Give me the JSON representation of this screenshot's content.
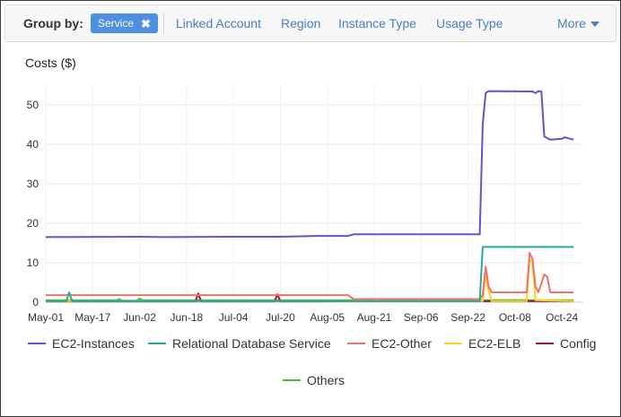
{
  "group_by": {
    "label": "Group by:",
    "selected_chip": "Service",
    "remove_glyph": "✖",
    "options": [
      "Linked Account",
      "Region",
      "Instance Type",
      "Usage Type"
    ],
    "more_label": "More"
  },
  "chart_data": {
    "type": "line",
    "title": "Costs ($)",
    "xlabel": "",
    "ylabel": "",
    "ylim": [
      0,
      55
    ],
    "yticks": [
      0,
      10,
      20,
      30,
      40,
      50
    ],
    "x_start": "May-01",
    "x_end": "Oct-31",
    "xticks": [
      "May-01",
      "May-17",
      "Jun-02",
      "Jun-18",
      "Jul-04",
      "Jul-20",
      "Aug-05",
      "Aug-21",
      "Sep-06",
      "Sep-22",
      "Oct-08",
      "Oct-24"
    ],
    "grid": true,
    "legend_position": "bottom",
    "series": [
      {
        "name": "EC2-Instances",
        "color": "#6a4fd0",
        "points": [
          [
            "May-01",
            16.5
          ],
          [
            "Jun-02",
            16.6
          ],
          [
            "Jun-10",
            16.5
          ],
          [
            "Jul-04",
            16.6
          ],
          [
            "Jul-20",
            16.6
          ],
          [
            "Aug-01",
            16.8
          ],
          [
            "Aug-12",
            16.8
          ],
          [
            "Aug-14",
            17.2
          ],
          [
            "Sep-22",
            17.2
          ],
          [
            "Sep-26",
            17.2
          ],
          [
            "Sep-27",
            45
          ],
          [
            "Sep-28",
            53
          ],
          [
            "Sep-29",
            53.5
          ],
          [
            "Oct-14",
            53.4
          ],
          [
            "Oct-15",
            53
          ],
          [
            "Oct-16",
            53.5
          ],
          [
            "Oct-17",
            53.4
          ],
          [
            "Oct-18",
            42
          ],
          [
            "Oct-20",
            41.2
          ],
          [
            "Oct-24",
            41.4
          ],
          [
            "Oct-25",
            41.8
          ],
          [
            "Oct-28",
            41.2
          ]
        ]
      },
      {
        "name": "Relational Database Service",
        "color": "#2aa89a",
        "points": [
          [
            "May-01",
            0.3
          ],
          [
            "May-08",
            0.3
          ],
          [
            "May-09",
            2.5
          ],
          [
            "May-10",
            0.3
          ],
          [
            "Sep-26",
            0.3
          ],
          [
            "Sep-27",
            14
          ],
          [
            "Oct-28",
            14
          ]
        ]
      },
      {
        "name": "EC2-Other",
        "color": "#f0706a",
        "points": [
          [
            "May-01",
            1.8
          ],
          [
            "Aug-12",
            1.8
          ],
          [
            "Aug-14",
            0.8
          ],
          [
            "Sep-26",
            0.8
          ],
          [
            "Sep-27",
            1.8
          ],
          [
            "Sep-28",
            9
          ],
          [
            "Sep-29",
            4
          ],
          [
            "Sep-30",
            2.5
          ],
          [
            "Oct-12",
            2.5
          ],
          [
            "Oct-13",
            12.5
          ],
          [
            "Oct-14",
            11
          ],
          [
            "Oct-15",
            4
          ],
          [
            "Oct-16",
            2.5
          ],
          [
            "Oct-18",
            7
          ],
          [
            "Oct-19",
            6.5
          ],
          [
            "Oct-20",
            2.5
          ],
          [
            "Oct-28",
            2.5
          ]
        ]
      },
      {
        "name": "EC2-ELB",
        "color": "#ffd21f",
        "points": [
          [
            "May-01",
            0.3
          ],
          [
            "Sep-26",
            0.3
          ],
          [
            "Sep-27",
            0.3
          ],
          [
            "Sep-28",
            7
          ],
          [
            "Sep-29",
            3
          ],
          [
            "Sep-30",
            0.3
          ],
          [
            "Oct-12",
            0.3
          ],
          [
            "Oct-13",
            11
          ],
          [
            "Oct-14",
            10
          ],
          [
            "Oct-15",
            0.5
          ],
          [
            "Oct-28",
            0.3
          ]
        ]
      },
      {
        "name": "Config",
        "color": "#a0123f",
        "points": [
          [
            "May-01",
            0.2
          ],
          [
            "Jun-21",
            0.2
          ],
          [
            "Jun-22",
            2.2
          ],
          [
            "Jun-23",
            0.2
          ],
          [
            "Jul-18",
            0.2
          ],
          [
            "Jul-19",
            2
          ],
          [
            "Jul-20",
            0.2
          ],
          [
            "Oct-28",
            0.3
          ]
        ]
      },
      {
        "name": "Others",
        "color": "#3dbf40",
        "points": [
          [
            "May-01",
            0.5
          ],
          [
            "May-25",
            0.5
          ],
          [
            "May-26",
            0.8
          ],
          [
            "May-27",
            0.4
          ],
          [
            "Jun-01",
            0.4
          ],
          [
            "Jun-02",
            0.9
          ],
          [
            "Jun-03",
            0.5
          ],
          [
            "Oct-28",
            0.5
          ]
        ]
      }
    ]
  }
}
